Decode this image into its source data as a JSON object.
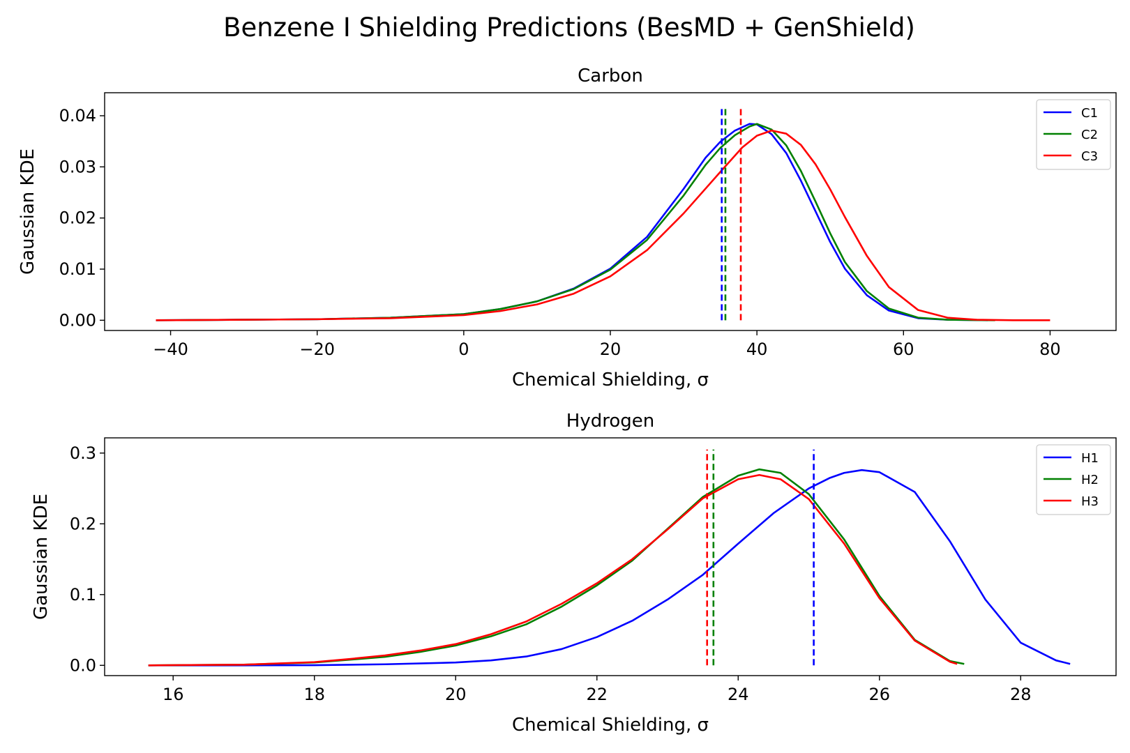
{
  "figure": {
    "suptitle": "Benzene I Shielding Predictions (BesMD + GenShield)"
  },
  "colors": {
    "blue": "#0000ff",
    "green": "#008000",
    "red": "#ff0000",
    "axis": "#000000",
    "legend_border": "#cccccc"
  },
  "chart_data": [
    {
      "type": "line",
      "title": "Carbon",
      "xlabel": "Chemical Shielding, σ",
      "ylabel": "Gaussian KDE",
      "xlim": [
        -49,
        89
      ],
      "ylim": [
        -0.002,
        0.0445
      ],
      "xticks": [
        -40,
        -20,
        0,
        20,
        40,
        60,
        80
      ],
      "xtick_labels": [
        "−40",
        "−20",
        "0",
        "20",
        "40",
        "60",
        "80"
      ],
      "yticks": [
        0,
        0.01,
        0.02,
        0.03,
        0.04
      ],
      "ytick_labels": [
        "0.00",
        "0.01",
        "0.02",
        "0.03",
        "0.04"
      ],
      "grid": false,
      "legend_position": "top-right",
      "series": [
        {
          "name": "C1",
          "color": "#0000ff",
          "x": [
            -42,
            -30,
            -20,
            -10,
            0,
            5,
            10,
            15,
            20,
            25,
            30,
            33,
            35,
            37,
            39,
            40,
            42,
            44,
            46,
            48,
            50,
            52,
            55,
            58,
            62,
            66,
            71.5
          ],
          "y": [
            0,
            0.0001,
            0.0002,
            0.0005,
            0.0012,
            0.0022,
            0.0037,
            0.0062,
            0.0101,
            0.0163,
            0.0257,
            0.0318,
            0.0349,
            0.0371,
            0.0384,
            0.0383,
            0.0364,
            0.0327,
            0.0273,
            0.0213,
            0.0153,
            0.0101,
            0.0049,
            0.0019,
            0.0004,
            0.0001,
            0
          ]
        },
        {
          "name": "C2",
          "color": "#008000",
          "x": [
            -42,
            -30,
            -20,
            -10,
            0,
            5,
            10,
            15,
            20,
            25,
            30,
            33,
            35,
            37,
            39,
            40,
            42,
            44,
            46,
            48,
            50,
            52,
            55,
            58,
            62,
            66,
            72.5
          ],
          "y": [
            0,
            0.0001,
            0.0002,
            0.0005,
            0.0012,
            0.0022,
            0.0037,
            0.0061,
            0.0099,
            0.0157,
            0.0244,
            0.0304,
            0.0337,
            0.0362,
            0.0379,
            0.0384,
            0.0373,
            0.0342,
            0.0292,
            0.0232,
            0.017,
            0.0114,
            0.0057,
            0.0023,
            0.0005,
            0.0001,
            0
          ]
        },
        {
          "name": "C3",
          "color": "#ff0000",
          "x": [
            -42,
            -30,
            -20,
            -10,
            0,
            5,
            10,
            15,
            20,
            25,
            30,
            35,
            38,
            40,
            42,
            44,
            46,
            48,
            50,
            52,
            55,
            58,
            62,
            66,
            70,
            75,
            80
          ],
          "y": [
            0,
            0.0001,
            0.0002,
            0.0004,
            0.001,
            0.0018,
            0.0031,
            0.0052,
            0.0086,
            0.0137,
            0.0209,
            0.029,
            0.0338,
            0.0361,
            0.0371,
            0.0365,
            0.0343,
            0.0305,
            0.0256,
            0.0202,
            0.0126,
            0.0065,
            0.002,
            0.0005,
            0.0001,
            0,
            0
          ]
        }
      ],
      "vlines": [
        {
          "name": "C1 mean",
          "x": 35.2,
          "color": "#0000ff",
          "ymax": 0.042
        },
        {
          "name": "C2 mean",
          "x": 35.7,
          "color": "#008000",
          "ymax": 0.042
        },
        {
          "name": "C3 mean",
          "x": 37.8,
          "color": "#ff0000",
          "ymax": 0.042
        }
      ]
    },
    {
      "type": "line",
      "title": "Hydrogen",
      "xlabel": "Chemical Shielding, σ",
      "ylabel": "Gaussian KDE",
      "xlim": [
        15.03,
        29.35
      ],
      "ylim": [
        -0.0145,
        0.3215
      ],
      "xticks": [
        16,
        18,
        20,
        22,
        24,
        26,
        28
      ],
      "xtick_labels": [
        "16",
        "18",
        "20",
        "22",
        "24",
        "26",
        "28"
      ],
      "yticks": [
        0,
        0.1,
        0.2,
        0.3
      ],
      "ytick_labels": [
        "0.0",
        "0.1",
        "0.2",
        "0.3"
      ],
      "grid": false,
      "legend_position": "top-right",
      "series": [
        {
          "name": "H1",
          "color": "#0000ff",
          "x": [
            15.65,
            17,
            18,
            19,
            20,
            20.5,
            21,
            21.5,
            22,
            22.5,
            23,
            23.5,
            24,
            24.5,
            25,
            25.3,
            25.5,
            25.75,
            26,
            26.5,
            27,
            27.5,
            28,
            28.5,
            28.7
          ],
          "y": [
            0,
            0,
            0.0002,
            0.0015,
            0.004,
            0.007,
            0.0125,
            0.023,
            0.04,
            0.063,
            0.093,
            0.128,
            0.172,
            0.215,
            0.25,
            0.265,
            0.272,
            0.276,
            0.273,
            0.245,
            0.175,
            0.093,
            0.032,
            0.007,
            0.002
          ]
        },
        {
          "name": "H2",
          "color": "#008000",
          "x": [
            15.65,
            17,
            18,
            18.5,
            19,
            19.5,
            20,
            20.5,
            21,
            21.5,
            22,
            22.5,
            23,
            23.5,
            24,
            24.3,
            24.6,
            25,
            25.5,
            26,
            26.5,
            27,
            27.2
          ],
          "y": [
            0,
            0.001,
            0.004,
            0.008,
            0.012,
            0.019,
            0.028,
            0.041,
            0.058,
            0.083,
            0.113,
            0.148,
            0.193,
            0.238,
            0.268,
            0.277,
            0.272,
            0.242,
            0.178,
            0.098,
            0.036,
            0.006,
            0.002
          ]
        },
        {
          "name": "H3",
          "color": "#ff0000",
          "x": [
            15.65,
            17,
            18,
            18.5,
            19,
            19.5,
            20,
            20.5,
            21,
            21.5,
            22,
            22.5,
            23,
            23.5,
            24,
            24.3,
            24.6,
            25,
            25.5,
            26,
            26.5,
            27,
            27.1
          ],
          "y": [
            0,
            0.001,
            0.0045,
            0.009,
            0.014,
            0.021,
            0.03,
            0.044,
            0.062,
            0.087,
            0.116,
            0.15,
            0.192,
            0.236,
            0.263,
            0.269,
            0.263,
            0.235,
            0.172,
            0.095,
            0.035,
            0.005,
            0.002
          ]
        }
      ],
      "vlines": [
        {
          "name": "H1 mean",
          "x": 25.07,
          "color": "#0000ff",
          "ymax": 0.305
        },
        {
          "name": "H2 mean",
          "x": 23.65,
          "color": "#008000",
          "ymax": 0.305
        },
        {
          "name": "H3 mean",
          "x": 23.56,
          "color": "#ff0000",
          "ymax": 0.305
        }
      ]
    }
  ]
}
